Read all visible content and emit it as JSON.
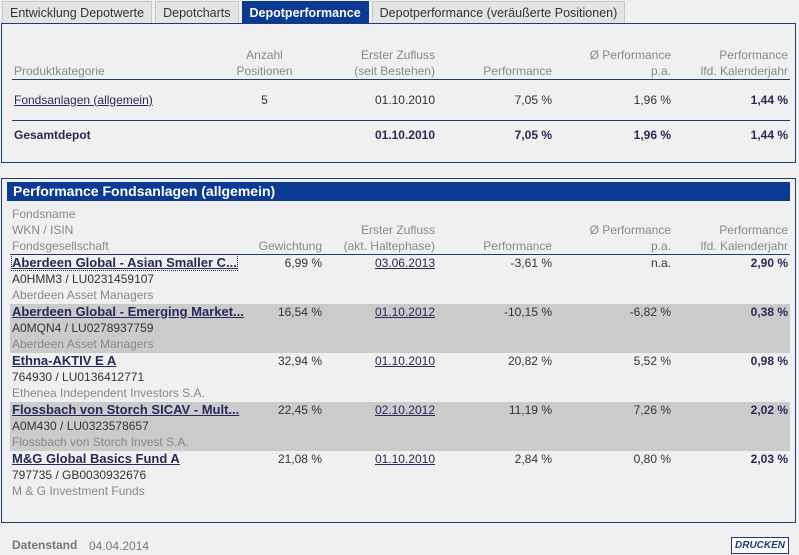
{
  "tabs": [
    {
      "label": "Entwicklung Depotwerte"
    },
    {
      "label": "Depotcharts"
    },
    {
      "label": "Depotperformance",
      "active": true
    },
    {
      "label": "Depotperformance (veräußerte Positionen)"
    }
  ],
  "summary": {
    "headers": {
      "category": "Produktkategorie",
      "count_1": "Anzahl",
      "count_2": "Positionen",
      "first_1": "Erster Zufluss",
      "first_2": "(seit Bestehen)",
      "perf": "Performance",
      "pa_1": "Ø Performance",
      "pa_2": "p.a.",
      "ytd_1": "Performance",
      "ytd_2": "lfd. Kalenderjahr"
    },
    "rows": [
      {
        "category": "Fondsanlagen (allgemein)",
        "count": "5",
        "first": "01.10.2010",
        "perf": "7,05 %",
        "pa": "1,96 %",
        "ytd": "1,44 %"
      }
    ],
    "total": {
      "category": "Gesamtdepot",
      "first": "01.10.2010",
      "perf": "7,05 %",
      "pa": "1,96 %",
      "ytd": "1,44 %"
    }
  },
  "funds": {
    "title": "Performance Fondsanlagen (allgemein)",
    "headers": {
      "name": "Fondsname",
      "wkn": "WKN / ISIN",
      "company": "Fondsgesellschaft",
      "weight": "Gewichtung",
      "first_1": "Erster Zufluss",
      "first_2": "(akt. Haltephase)",
      "perf": "Performance",
      "pa_1": "Ø Performance",
      "pa_2": "p.a.",
      "ytd_1": "Performance",
      "ytd_2": "lfd. Kalenderjahr"
    },
    "rows": [
      {
        "name": "Aberdeen Global - Asian Smaller C...",
        "ids": "A0HMM3 /  LU0231459107",
        "company": "Aberdeen Asset Managers",
        "weight": "6,99 %",
        "first": "03.06.2013",
        "perf": "-3,61 %",
        "pa": "n.a.",
        "ytd": "2,90 %"
      },
      {
        "name": "Aberdeen Global - Emerging Market...",
        "ids": "A0MQN4 /  LU0278937759",
        "company": "Aberdeen Asset Managers",
        "weight": "16,54 %",
        "first": "01.10.2012",
        "perf": "-10,15 %",
        "pa": "-6,82 %",
        "ytd": "0,38 %"
      },
      {
        "name": "Ethna-AKTIV E A",
        "ids": "764930 /  LU0136412771",
        "company": "Ethenea Independent Investors S.A.",
        "weight": "32,94 %",
        "first": "01.10.2010",
        "perf": "20,82 %",
        "pa": "5,52 %",
        "ytd": "0,98 %"
      },
      {
        "name": "Flossbach von Storch SICAV - Mult...",
        "ids": "A0M430 /  LU0323578657",
        "company": "Flossbach von Storch Invest S.A.",
        "weight": "22,45 %",
        "first": "02.10.2012",
        "perf": "11,19 %",
        "pa": "7,26 %",
        "ytd": "2,02 %"
      },
      {
        "name": "M&G Global Basics Fund A",
        "ids": "797735 /  GB0030932676",
        "company": "M & G Investment Funds",
        "weight": "21,08 %",
        "first": "01.10.2010",
        "perf": "2,84 %",
        "pa": "0,80 %",
        "ytd": "2,03 %"
      }
    ]
  },
  "footer": {
    "label": "Datenstand",
    "date": "04.04.2014",
    "print": "DRUCKEN"
  }
}
